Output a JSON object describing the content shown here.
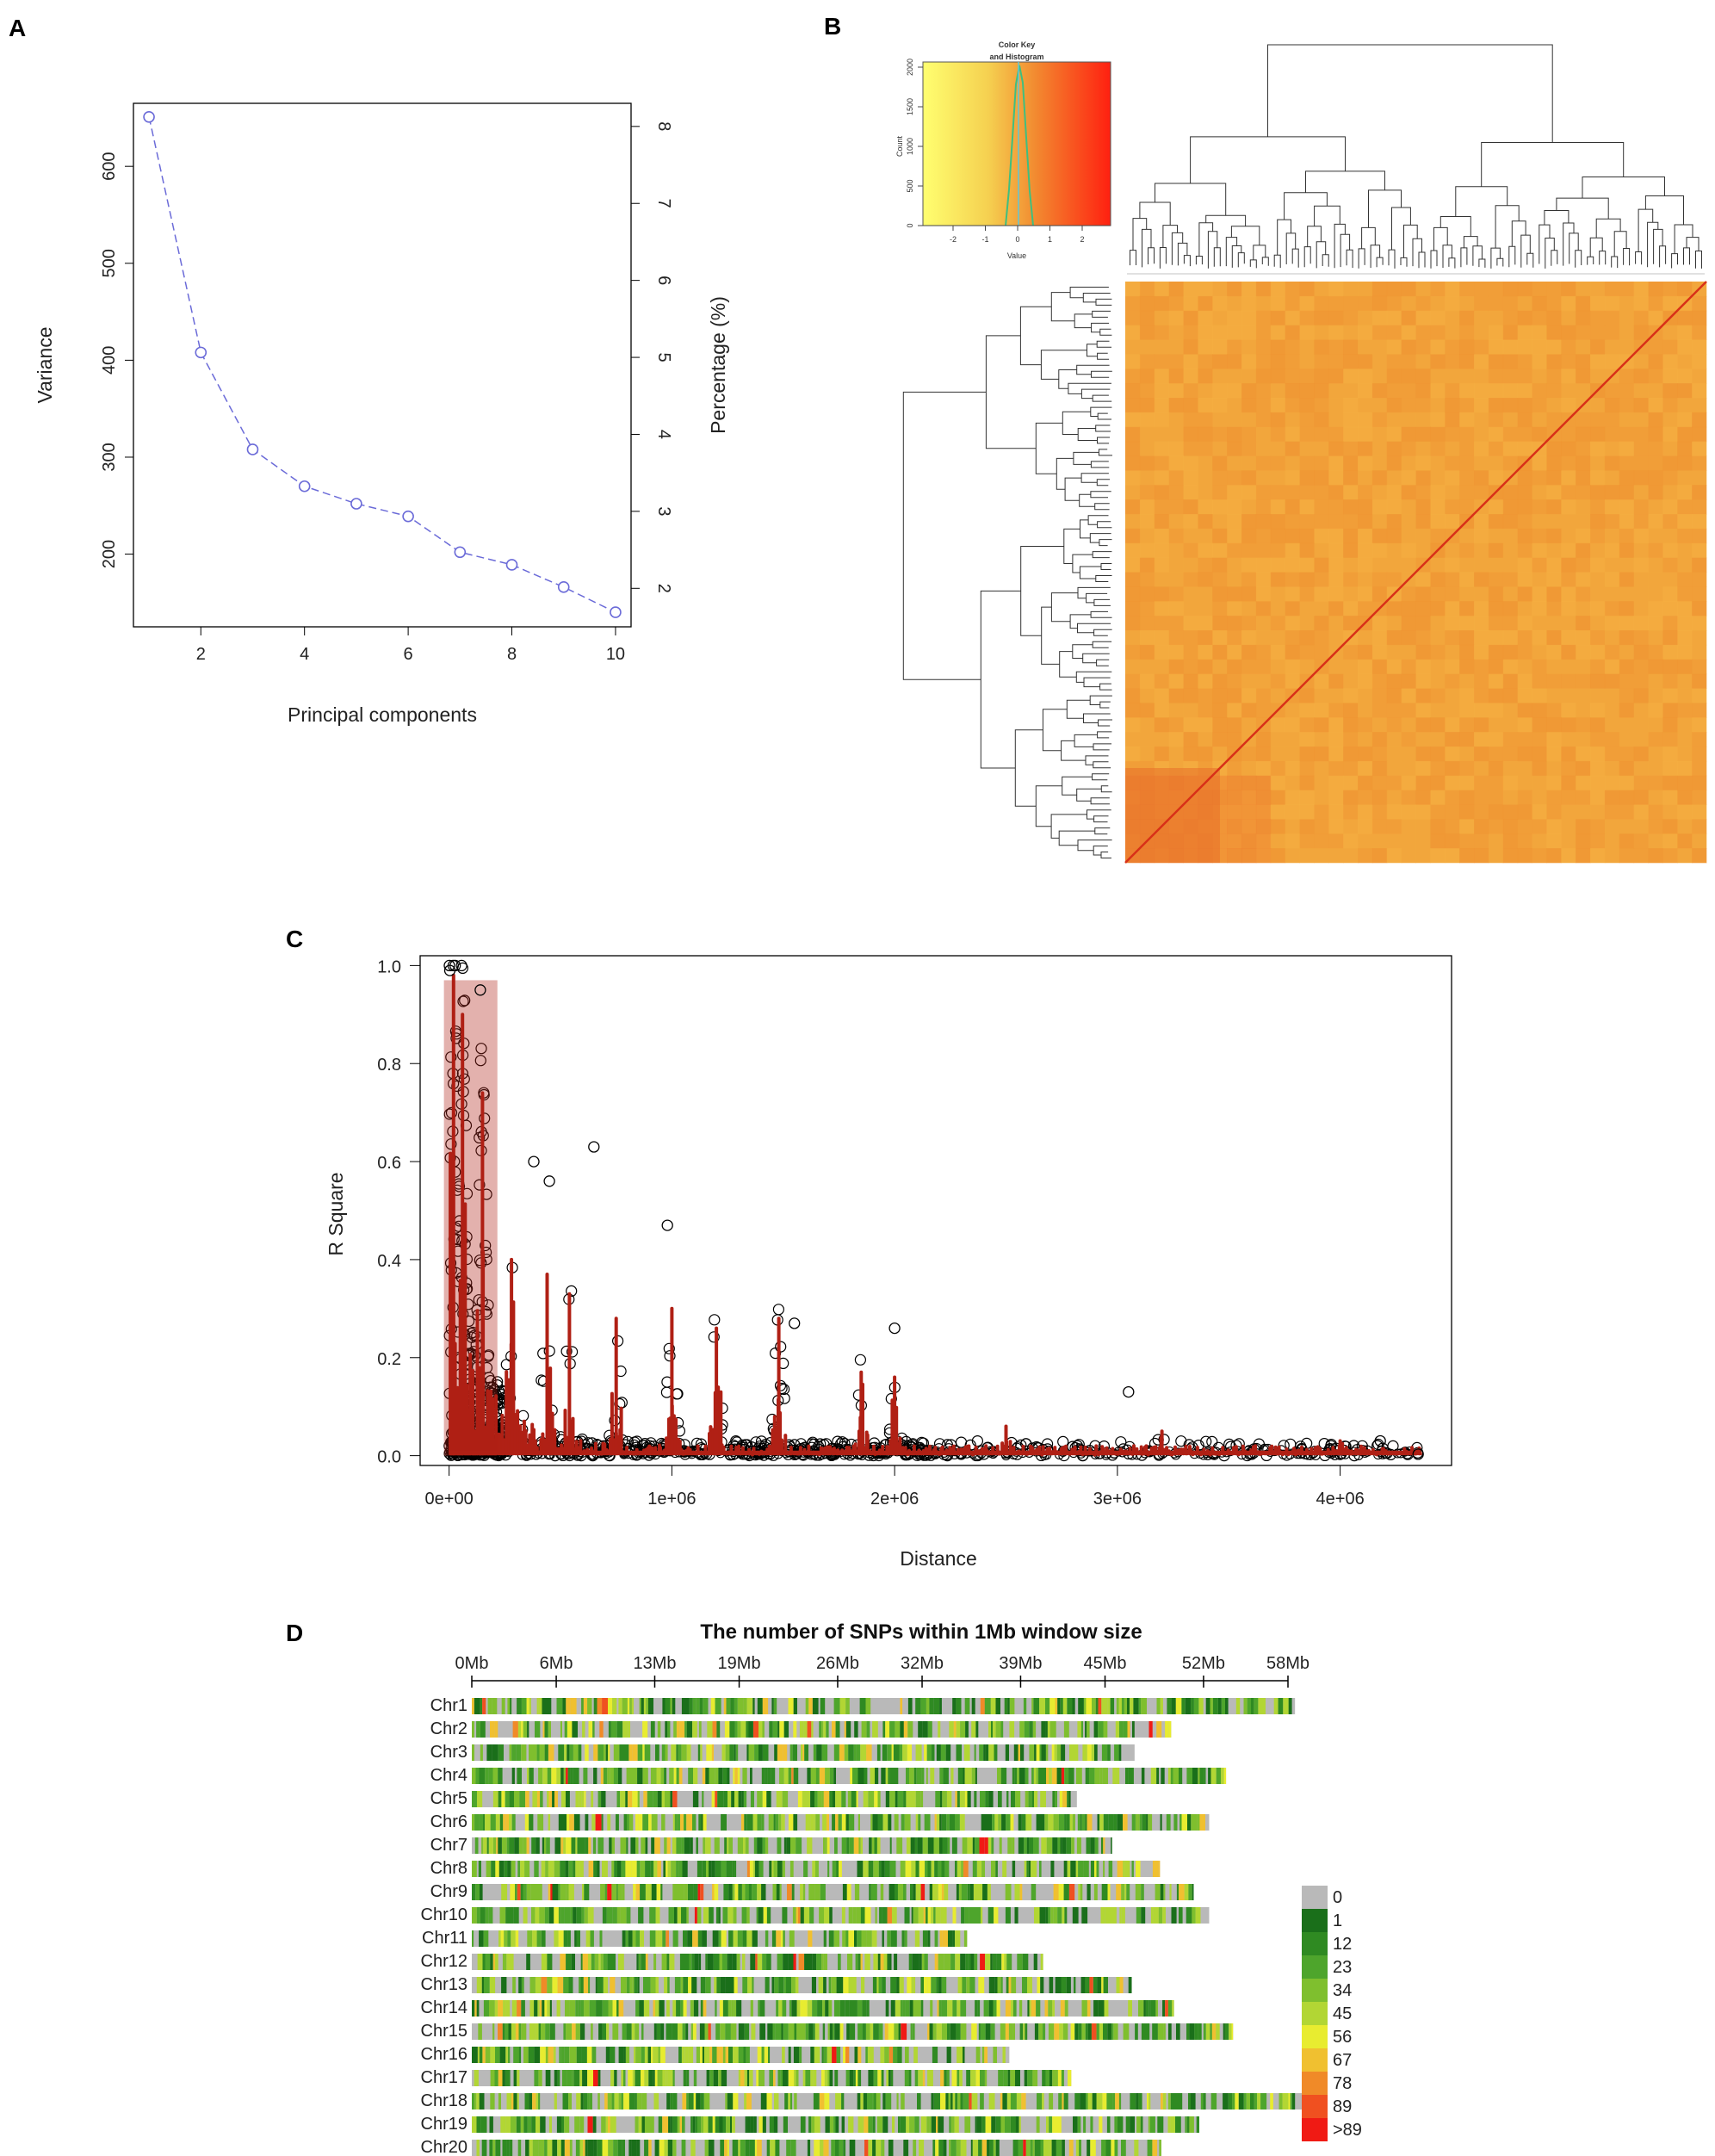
{
  "panel_labels": [
    "A",
    "B",
    "C",
    "D"
  ],
  "chart_data": [
    {
      "id": "A",
      "type": "line",
      "x": [
        1,
        2,
        3,
        4,
        5,
        6,
        7,
        8,
        9,
        10
      ],
      "values": [
        651,
        408,
        308,
        270,
        252,
        239,
        202,
        189,
        166,
        140
      ],
      "xlabel": "Principal components",
      "ylabel": "Variance",
      "y2label": "Percentage (%)",
      "xticks": [
        2,
        4,
        6,
        8,
        10
      ],
      "yticks": [
        200,
        300,
        400,
        500,
        600
      ],
      "y2ticks": [
        2,
        3,
        4,
        5,
        6,
        7,
        8
      ],
      "xlim": [
        0.7,
        10.3
      ],
      "ylim": [
        125,
        665
      ],
      "y2lim": [
        1.5,
        8.3
      ],
      "line_color": "#6b6bd8"
    },
    {
      "id": "B",
      "type": "heatmap",
      "key_title_1": "Color Key",
      "key_title_2": "and Histogram",
      "key_xlabel": "Value",
      "key_ylabel": "Count",
      "key_xticks": [
        "-2",
        "-1",
        "0",
        "1",
        "2"
      ],
      "key_yticks": [
        "0",
        "500",
        "1000",
        "1500",
        "2000"
      ],
      "colors": [
        "#ffff60",
        "#f7b040",
        "#ff2010"
      ],
      "hist_color": "#3fbf7f",
      "diagonal_color": "#d83018",
      "cell_color": "#f2a23a"
    },
    {
      "id": "C",
      "type": "scatter",
      "xlabel": "Distance",
      "ylabel": "R Square",
      "xtick_labels": [
        "0e+00",
        "1e+06",
        "2e+06",
        "3e+06",
        "4e+06"
      ],
      "xticks": [
        0,
        1000000,
        2000000,
        3000000,
        4000000
      ],
      "ytick_labels": [
        "0.0",
        "0.2",
        "0.4",
        "0.6",
        "0.8",
        "1.0"
      ],
      "yticks": [
        0,
        0.2,
        0.4,
        0.6,
        0.8,
        1.0
      ],
      "xlim": [
        -130000,
        4500000
      ],
      "ylim": [
        -0.02,
        1.02
      ],
      "highlight_points": [
        [
          1300,
          1.0
        ],
        [
          3500,
          0.99
        ],
        [
          140000,
          0.95
        ],
        [
          380000,
          0.6
        ],
        [
          450000,
          0.56
        ],
        [
          650000,
          0.63
        ],
        [
          980000,
          0.47
        ],
        [
          1550000,
          0.27
        ],
        [
          2000000,
          0.26
        ],
        [
          3050000,
          0.13
        ],
        [
          4180000,
          0.03
        ],
        [
          4350000,
          0.003
        ]
      ],
      "red_peaks": [
        [
          20000,
          0.98
        ],
        [
          60000,
          0.9
        ],
        [
          150000,
          0.74
        ],
        [
          280000,
          0.4
        ],
        [
          440000,
          0.37
        ],
        [
          540000,
          0.33
        ],
        [
          750000,
          0.28
        ],
        [
          1000000,
          0.3
        ],
        [
          1200000,
          0.26
        ],
        [
          1480000,
          0.28
        ],
        [
          1850000,
          0.17
        ],
        [
          2000000,
          0.16
        ],
        [
          2500000,
          0.06
        ],
        [
          3200000,
          0.05
        ],
        [
          4000000,
          0.03
        ],
        [
          4360000,
          0.005
        ]
      ],
      "marker_color": "#000000",
      "fit_color": "#b02015"
    },
    {
      "id": "D",
      "type": "heatmap",
      "title": "The number of SNPs within 1Mb window size",
      "x_tick_labels": [
        "0Mb",
        "6Mb",
        "13Mb",
        "19Mb",
        "26Mb",
        "32Mb",
        "39Mb",
        "45Mb",
        "52Mb",
        "58Mb"
      ],
      "x_tick_values": [
        0,
        6,
        13,
        19,
        26,
        32,
        39,
        45,
        52,
        58
      ],
      "xlim": [
        0,
        58
      ],
      "chromosomes": [
        "Chr1",
        "Chr2",
        "Chr3",
        "Chr4",
        "Chr5",
        "Chr6",
        "Chr7",
        "Chr8",
        "Chr9",
        "Chr10",
        "Chr11",
        "Chr12",
        "Chr13",
        "Chr14",
        "Chr15",
        "Chr16",
        "Chr17",
        "Chr18",
        "Chr19",
        "Chr20"
      ],
      "lengths_mb": [
        58.5,
        49.7,
        47.1,
        53.6,
        43.0,
        52.4,
        45.5,
        48.9,
        51.3,
        52.4,
        35.2,
        40.6,
        46.9,
        49.9,
        54.1,
        38.2,
        42.6,
        59.5,
        51.7,
        49.0
      ],
      "legend_labels": [
        "0",
        "1",
        "12",
        "23",
        "34",
        "45",
        "56",
        "67",
        "78",
        "89",
        ">89"
      ],
      "legend_colors": [
        "#b9b9b9",
        "#1a6f1a",
        "#2f8a22",
        "#4ea52c",
        "#7fbf2e",
        "#b2d634",
        "#e8ec30",
        "#f0c030",
        "#f08a28",
        "#f05020",
        "#f01a14"
      ]
    }
  ]
}
